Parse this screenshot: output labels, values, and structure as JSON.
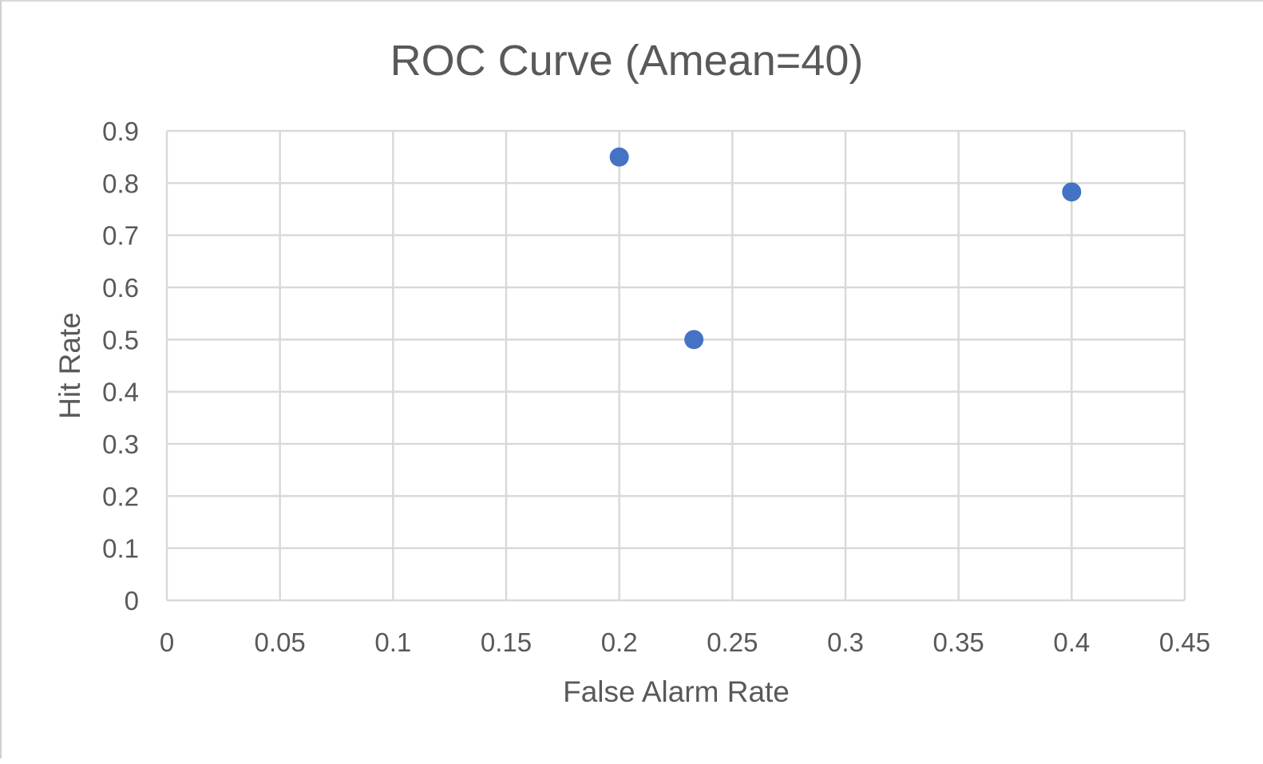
{
  "chart_data": {
    "type": "scatter",
    "title": "ROC Curve (Amean=40)",
    "xlabel": "False Alarm Rate",
    "ylabel": "Hit Rate",
    "xlim": [
      0,
      0.45
    ],
    "ylim": [
      0,
      0.9
    ],
    "xticks": [
      "0",
      "0.05",
      "0.1",
      "0.15",
      "0.2",
      "0.25",
      "0.3",
      "0.35",
      "0.4",
      "0.45"
    ],
    "yticks": [
      "0",
      "0.1",
      "0.2",
      "0.3",
      "0.4",
      "0.5",
      "0.6",
      "0.7",
      "0.8",
      "0.9"
    ],
    "grid": true,
    "legend": "none",
    "series": [
      {
        "points": [
          {
            "x": 0.2,
            "y": 0.85
          },
          {
            "x": 0.233,
            "y": 0.5
          },
          {
            "x": 0.4,
            "y": 0.783
          }
        ]
      }
    ],
    "colors": {
      "marker": "#4472c4",
      "grid": "#d9d9d9",
      "text": "#595959"
    }
  }
}
